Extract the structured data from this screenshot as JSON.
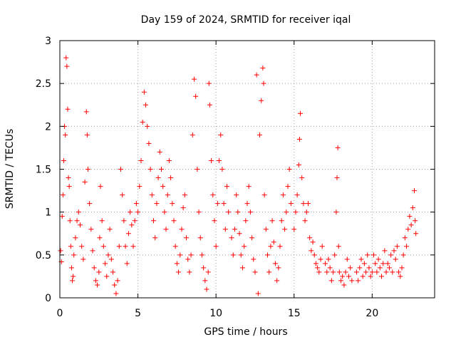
{
  "chart_data": {
    "type": "scatter",
    "title": "Day 159 of 2024, SRMTID for receiver iqal",
    "xlabel": "GPS time / hours",
    "ylabel": "SRMTID / TECUs",
    "xlim": [
      0,
      24
    ],
    "ylim": [
      0,
      3
    ],
    "xticks": [
      0,
      5,
      10,
      15,
      20
    ],
    "xtick_labels": [
      "0",
      "5",
      "10",
      "15",
      "20"
    ],
    "yticks": [
      0,
      0.5,
      1,
      1.5,
      2,
      2.5,
      3
    ],
    "ytick_labels": [
      "0",
      "0.5",
      "1",
      "1.5",
      "2",
      "2.5",
      "3"
    ],
    "grid": true,
    "marker": "+",
    "color": "#ff0000",
    "series": [
      {
        "name": "SRMTID",
        "points": [
          [
            0.05,
            0.55
          ],
          [
            0.1,
            0.42
          ],
          [
            0.15,
            0.95
          ],
          [
            0.2,
            1.2
          ],
          [
            0.25,
            1.6
          ],
          [
            0.3,
            2.0
          ],
          [
            0.35,
            1.9
          ],
          [
            0.4,
            2.8
          ],
          [
            0.45,
            2.7
          ],
          [
            0.5,
            2.2
          ],
          [
            0.55,
            1.4
          ],
          [
            0.6,
            1.3
          ],
          [
            0.65,
            0.9
          ],
          [
            0.7,
            0.6
          ],
          [
            0.75,
            0.35
          ],
          [
            0.8,
            0.2
          ],
          [
            0.85,
            0.25
          ],
          [
            0.9,
            0.5
          ],
          [
            1.0,
            0.7
          ],
          [
            1.1,
            0.9
          ],
          [
            1.2,
            1.0
          ],
          [
            1.3,
            0.85
          ],
          [
            1.4,
            0.6
          ],
          [
            1.5,
            0.45
          ],
          [
            1.6,
            1.35
          ],
          [
            1.7,
            2.17
          ],
          [
            1.75,
            1.9
          ],
          [
            1.8,
            1.5
          ],
          [
            1.9,
            1.1
          ],
          [
            2.0,
            0.8
          ],
          [
            2.1,
            0.55
          ],
          [
            2.2,
            0.35
          ],
          [
            2.3,
            0.2
          ],
          [
            2.4,
            0.15
          ],
          [
            2.5,
            0.3
          ],
          [
            2.55,
            0.7
          ],
          [
            2.6,
            1.3
          ],
          [
            2.7,
            0.9
          ],
          [
            2.8,
            0.6
          ],
          [
            2.9,
            0.4
          ],
          [
            3.0,
            0.25
          ],
          [
            3.1,
            0.5
          ],
          [
            3.2,
            0.8
          ],
          [
            3.3,
            0.45
          ],
          [
            3.4,
            0.3
          ],
          [
            3.5,
            0.15
          ],
          [
            3.6,
            0.05
          ],
          [
            3.7,
            0.2
          ],
          [
            3.8,
            0.6
          ],
          [
            3.9,
            1.5
          ],
          [
            4.0,
            1.2
          ],
          [
            4.1,
            0.9
          ],
          [
            4.2,
            0.6
          ],
          [
            4.3,
            0.4
          ],
          [
            4.4,
            0.75
          ],
          [
            4.5,
            1.0
          ],
          [
            4.6,
            0.85
          ],
          [
            4.7,
            0.6
          ],
          [
            4.8,
            0.9
          ],
          [
            4.9,
            1.1
          ],
          [
            5.0,
            1.0
          ],
          [
            5.1,
            1.3
          ],
          [
            5.2,
            1.6
          ],
          [
            5.3,
            2.05
          ],
          [
            5.4,
            2.4
          ],
          [
            5.5,
            2.25
          ],
          [
            5.6,
            2.0
          ],
          [
            5.7,
            1.8
          ],
          [
            5.8,
            1.5
          ],
          [
            5.9,
            1.2
          ],
          [
            6.0,
            0.9
          ],
          [
            6.1,
            0.7
          ],
          [
            6.2,
            1.1
          ],
          [
            6.3,
            1.4
          ],
          [
            6.4,
            1.7
          ],
          [
            6.5,
            1.5
          ],
          [
            6.6,
            1.3
          ],
          [
            6.7,
            1.0
          ],
          [
            6.8,
            0.8
          ],
          [
            6.9,
            1.2
          ],
          [
            7.0,
            1.6
          ],
          [
            7.1,
            1.4
          ],
          [
            7.2,
            1.1
          ],
          [
            7.3,
            0.9
          ],
          [
            7.4,
            0.6
          ],
          [
            7.5,
            0.4
          ],
          [
            7.6,
            0.3
          ],
          [
            7.7,
            0.5
          ],
          [
            7.8,
            0.8
          ],
          [
            7.9,
            1.05
          ],
          [
            8.0,
            1.2
          ],
          [
            8.1,
            0.7
          ],
          [
            8.2,
            0.45
          ],
          [
            8.3,
            0.3
          ],
          [
            8.4,
            0.5
          ],
          [
            8.5,
            1.9
          ],
          [
            8.6,
            2.55
          ],
          [
            8.7,
            2.35
          ],
          [
            8.8,
            1.5
          ],
          [
            8.9,
            1.0
          ],
          [
            9.0,
            0.7
          ],
          [
            9.1,
            0.5
          ],
          [
            9.2,
            0.35
          ],
          [
            9.3,
            0.2
          ],
          [
            9.4,
            0.1
          ],
          [
            9.5,
            0.3
          ],
          [
            9.55,
            2.5
          ],
          [
            9.6,
            2.25
          ],
          [
            9.7,
            1.6
          ],
          [
            9.8,
            1.2
          ],
          [
            9.9,
            0.9
          ],
          [
            10.0,
            0.6
          ],
          [
            10.1,
            1.1
          ],
          [
            10.2,
            1.6
          ],
          [
            10.3,
            1.9
          ],
          [
            10.4,
            1.5
          ],
          [
            10.5,
            1.1
          ],
          [
            10.6,
            0.8
          ],
          [
            10.7,
            1.3
          ],
          [
            10.8,
            1.0
          ],
          [
            11.0,
            0.7
          ],
          [
            11.1,
            0.5
          ],
          [
            11.2,
            0.8
          ],
          [
            11.3,
            1.2
          ],
          [
            11.4,
            1.0
          ],
          [
            11.5,
            0.75
          ],
          [
            11.6,
            0.5
          ],
          [
            11.7,
            0.35
          ],
          [
            11.8,
            0.6
          ],
          [
            11.9,
            0.9
          ],
          [
            12.0,
            1.1
          ],
          [
            12.1,
            1.3
          ],
          [
            12.2,
            1.0
          ],
          [
            12.3,
            0.7
          ],
          [
            12.4,
            0.45
          ],
          [
            12.5,
            0.3
          ],
          [
            12.6,
            2.6
          ],
          [
            12.7,
            0.05
          ],
          [
            12.8,
            1.9
          ],
          [
            12.9,
            2.3
          ],
          [
            13.0,
            2.68
          ],
          [
            13.05,
            2.5
          ],
          [
            13.1,
            1.2
          ],
          [
            13.2,
            0.8
          ],
          [
            13.3,
            0.5
          ],
          [
            13.4,
            0.3
          ],
          [
            13.5,
            0.6
          ],
          [
            13.6,
            0.9
          ],
          [
            13.7,
            0.65
          ],
          [
            13.8,
            0.4
          ],
          [
            13.9,
            0.2
          ],
          [
            14.0,
            0.35
          ],
          [
            14.1,
            0.6
          ],
          [
            14.2,
            0.9
          ],
          [
            14.3,
            1.2
          ],
          [
            14.4,
            0.8
          ],
          [
            14.5,
            1.0
          ],
          [
            14.6,
            1.3
          ],
          [
            14.7,
            1.5
          ],
          [
            14.8,
            1.1
          ],
          [
            15.0,
            0.8
          ],
          [
            15.1,
            1.0
          ],
          [
            15.2,
            1.2
          ],
          [
            15.3,
            1.55
          ],
          [
            15.35,
            1.85
          ],
          [
            15.4,
            2.15
          ],
          [
            15.5,
            1.4
          ],
          [
            15.6,
            1.1
          ],
          [
            15.7,
            0.9
          ],
          [
            15.8,
            1.0
          ],
          [
            15.9,
            1.1
          ],
          [
            16.0,
            0.7
          ],
          [
            16.1,
            0.55
          ],
          [
            16.2,
            0.65
          ],
          [
            16.3,
            0.5
          ],
          [
            16.4,
            0.4
          ],
          [
            16.5,
            0.35
          ],
          [
            16.6,
            0.3
          ],
          [
            16.7,
            0.45
          ],
          [
            16.8,
            0.6
          ],
          [
            17.0,
            0.4
          ],
          [
            17.1,
            0.3
          ],
          [
            17.2,
            0.45
          ],
          [
            17.3,
            0.35
          ],
          [
            17.4,
            0.2
          ],
          [
            17.5,
            0.3
          ],
          [
            17.6,
            0.5
          ],
          [
            17.7,
            1.0
          ],
          [
            17.75,
            1.4
          ],
          [
            17.8,
            1.75
          ],
          [
            17.85,
            0.6
          ],
          [
            17.9,
            0.3
          ],
          [
            18.0,
            0.2
          ],
          [
            18.1,
            0.25
          ],
          [
            18.2,
            0.15
          ],
          [
            18.3,
            0.3
          ],
          [
            18.4,
            0.45
          ],
          [
            18.5,
            0.25
          ],
          [
            18.6,
            0.35
          ],
          [
            18.7,
            0.2
          ],
          [
            19.0,
            0.3
          ],
          [
            19.1,
            0.2
          ],
          [
            19.2,
            0.35
          ],
          [
            19.3,
            0.45
          ],
          [
            19.4,
            0.25
          ],
          [
            19.5,
            0.4
          ],
          [
            19.6,
            0.3
          ],
          [
            19.7,
            0.5
          ],
          [
            19.8,
            0.35
          ],
          [
            19.9,
            0.25
          ],
          [
            20.0,
            0.3
          ],
          [
            20.1,
            0.5
          ],
          [
            20.2,
            0.4
          ],
          [
            20.3,
            0.3
          ],
          [
            20.4,
            0.45
          ],
          [
            20.5,
            0.35
          ],
          [
            20.6,
            0.25
          ],
          [
            20.7,
            0.4
          ],
          [
            20.8,
            0.55
          ],
          [
            20.9,
            0.3
          ],
          [
            21.0,
            0.4
          ],
          [
            21.1,
            0.35
          ],
          [
            21.2,
            0.5
          ],
          [
            21.3,
            0.3
          ],
          [
            21.4,
            0.55
          ],
          [
            21.5,
            0.45
          ],
          [
            21.6,
            0.6
          ],
          [
            21.7,
            0.3
          ],
          [
            21.8,
            0.25
          ],
          [
            21.9,
            0.35
          ],
          [
            22.0,
            0.5
          ],
          [
            22.1,
            0.7
          ],
          [
            22.2,
            0.6
          ],
          [
            22.3,
            0.8
          ],
          [
            22.4,
            0.95
          ],
          [
            22.5,
            0.85
          ],
          [
            22.6,
            1.05
          ],
          [
            22.7,
            1.25
          ],
          [
            22.75,
            0.9
          ],
          [
            22.8,
            0.75
          ]
        ]
      }
    ]
  }
}
